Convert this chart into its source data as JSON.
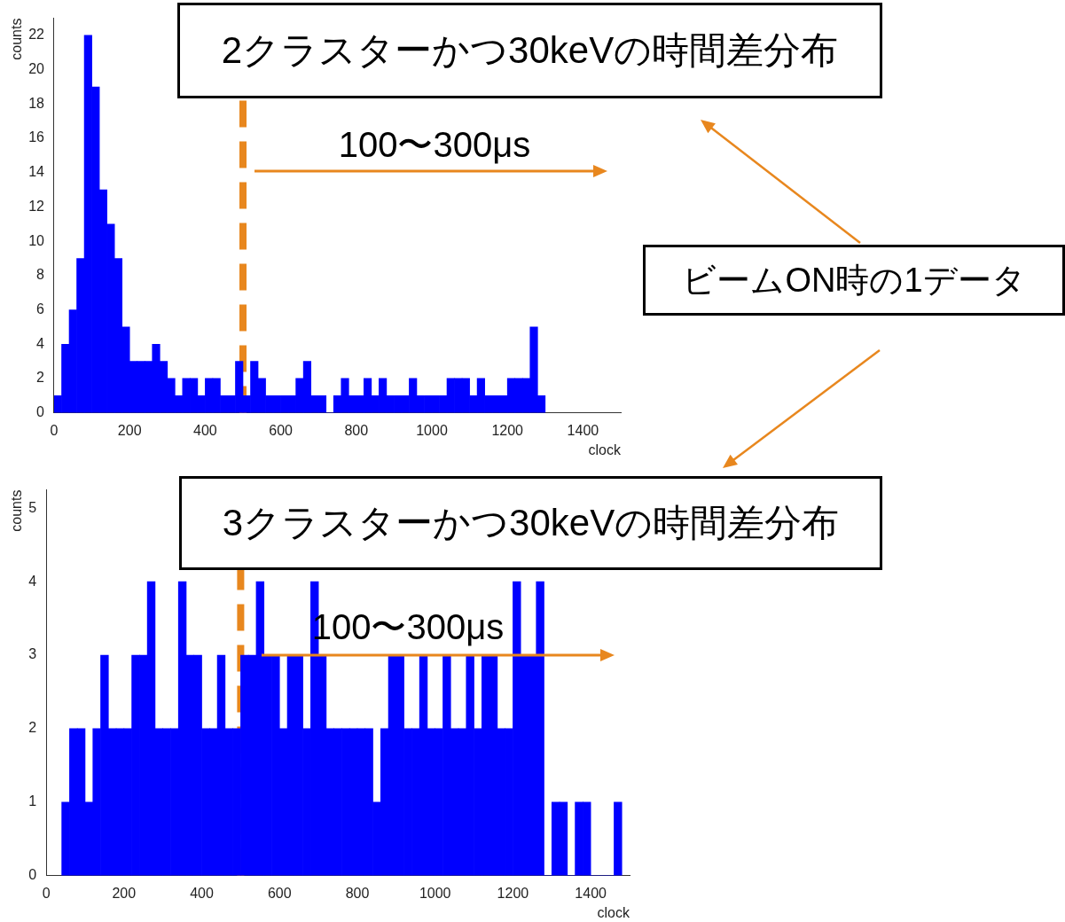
{
  "chart_data": [
    {
      "type": "histogram",
      "title": "2クラスターかつ30keVの時間差分布",
      "xlabel": "clock",
      "ylabel": "counts",
      "annotations": [
        "100〜300μs",
        "ビームON時の1データ"
      ],
      "bins": [
        0,
        20,
        40,
        60,
        80,
        100,
        120,
        140,
        160,
        180,
        200,
        220,
        240,
        260,
        280,
        300,
        320,
        340,
        360,
        380,
        400,
        420,
        440,
        460,
        480,
        500,
        520,
        540,
        560,
        580,
        600,
        620,
        640,
        660,
        680,
        700,
        720,
        740,
        760,
        780,
        800,
        820,
        840,
        860,
        880,
        900,
        920,
        940,
        960,
        980,
        1000,
        1020,
        1040,
        1060,
        1080,
        1100,
        1120,
        1140,
        1160,
        1180,
        1200,
        1220,
        1240,
        1260,
        1280,
        1300
      ],
      "values": [
        1,
        4,
        6,
        9,
        22,
        19,
        13,
        11,
        9,
        5,
        3,
        3,
        3,
        4,
        3,
        2,
        1,
        2,
        2,
        1,
        2,
        2,
        1,
        1,
        3,
        1,
        3,
        2,
        1,
        1,
        1,
        1,
        2,
        3,
        1,
        1,
        0,
        1,
        2,
        1,
        1,
        2,
        1,
        2,
        1,
        1,
        1,
        2,
        1,
        1,
        1,
        1,
        2,
        2,
        2,
        1,
        2,
        1,
        1,
        1,
        2,
        2,
        2,
        5,
        1
      ],
      "color": "#0000ff",
      "xlim": [
        0,
        1500
      ],
      "xticks": [
        0,
        200,
        400,
        600,
        800,
        1000,
        1200,
        1400
      ],
      "ylim": [
        0,
        23
      ],
      "yticks": [
        0,
        2,
        4,
        6,
        8,
        10,
        12,
        14,
        16,
        18,
        20,
        22
      ],
      "grid": false,
      "legend": false,
      "ref_lines": [
        {
          "axis": "x",
          "value": 500,
          "color": "#e8871e",
          "line_style": "dashed"
        }
      ]
    },
    {
      "type": "histogram",
      "title": "3クラスターかつ30keVの時間差分布",
      "xlabel": "clock",
      "ylabel": "counts",
      "annotations": [
        "100〜300μs"
      ],
      "bins": [
        40,
        60,
        80,
        100,
        120,
        140,
        160,
        180,
        200,
        220,
        240,
        260,
        280,
        300,
        320,
        340,
        360,
        380,
        400,
        420,
        440,
        460,
        480,
        500,
        520,
        540,
        560,
        580,
        600,
        620,
        640,
        660,
        680,
        700,
        720,
        740,
        760,
        780,
        800,
        820,
        840,
        860,
        880,
        900,
        920,
        940,
        960,
        980,
        1000,
        1020,
        1040,
        1060,
        1080,
        1100,
        1120,
        1140,
        1160,
        1180,
        1200,
        1220,
        1240,
        1260,
        1280,
        1300,
        1320,
        1340,
        1360,
        1380,
        1400,
        1420,
        1440,
        1460,
        1480
      ],
      "values": [
        1,
        2,
        2,
        1,
        2,
        3,
        2,
        2,
        2,
        3,
        3,
        4,
        2,
        2,
        2,
        4,
        3,
        3,
        2,
        2,
        3,
        2,
        2,
        3,
        3,
        4,
        3,
        3,
        2,
        3,
        3,
        2,
        4,
        3,
        2,
        2,
        2,
        2,
        2,
        2,
        1,
        2,
        3,
        3,
        2,
        2,
        3,
        2,
        2,
        3,
        2,
        2,
        3,
        2,
        3,
        3,
        2,
        2,
        4,
        3,
        3,
        4,
        0,
        1,
        1,
        0,
        1,
        1,
        0,
        0,
        0,
        1
      ],
      "color": "#0000ff",
      "xlim": [
        0,
        1500
      ],
      "xticks": [
        0,
        200,
        400,
        600,
        800,
        1000,
        1200,
        1400
      ],
      "ylim": [
        0,
        5.25
      ],
      "yticks": [
        0,
        1,
        2,
        3,
        4,
        5
      ],
      "grid": false,
      "legend": false,
      "ref_lines": [
        {
          "axis": "x",
          "value": 500,
          "color": "#e8871e",
          "line_style": "dashed"
        }
      ]
    }
  ]
}
